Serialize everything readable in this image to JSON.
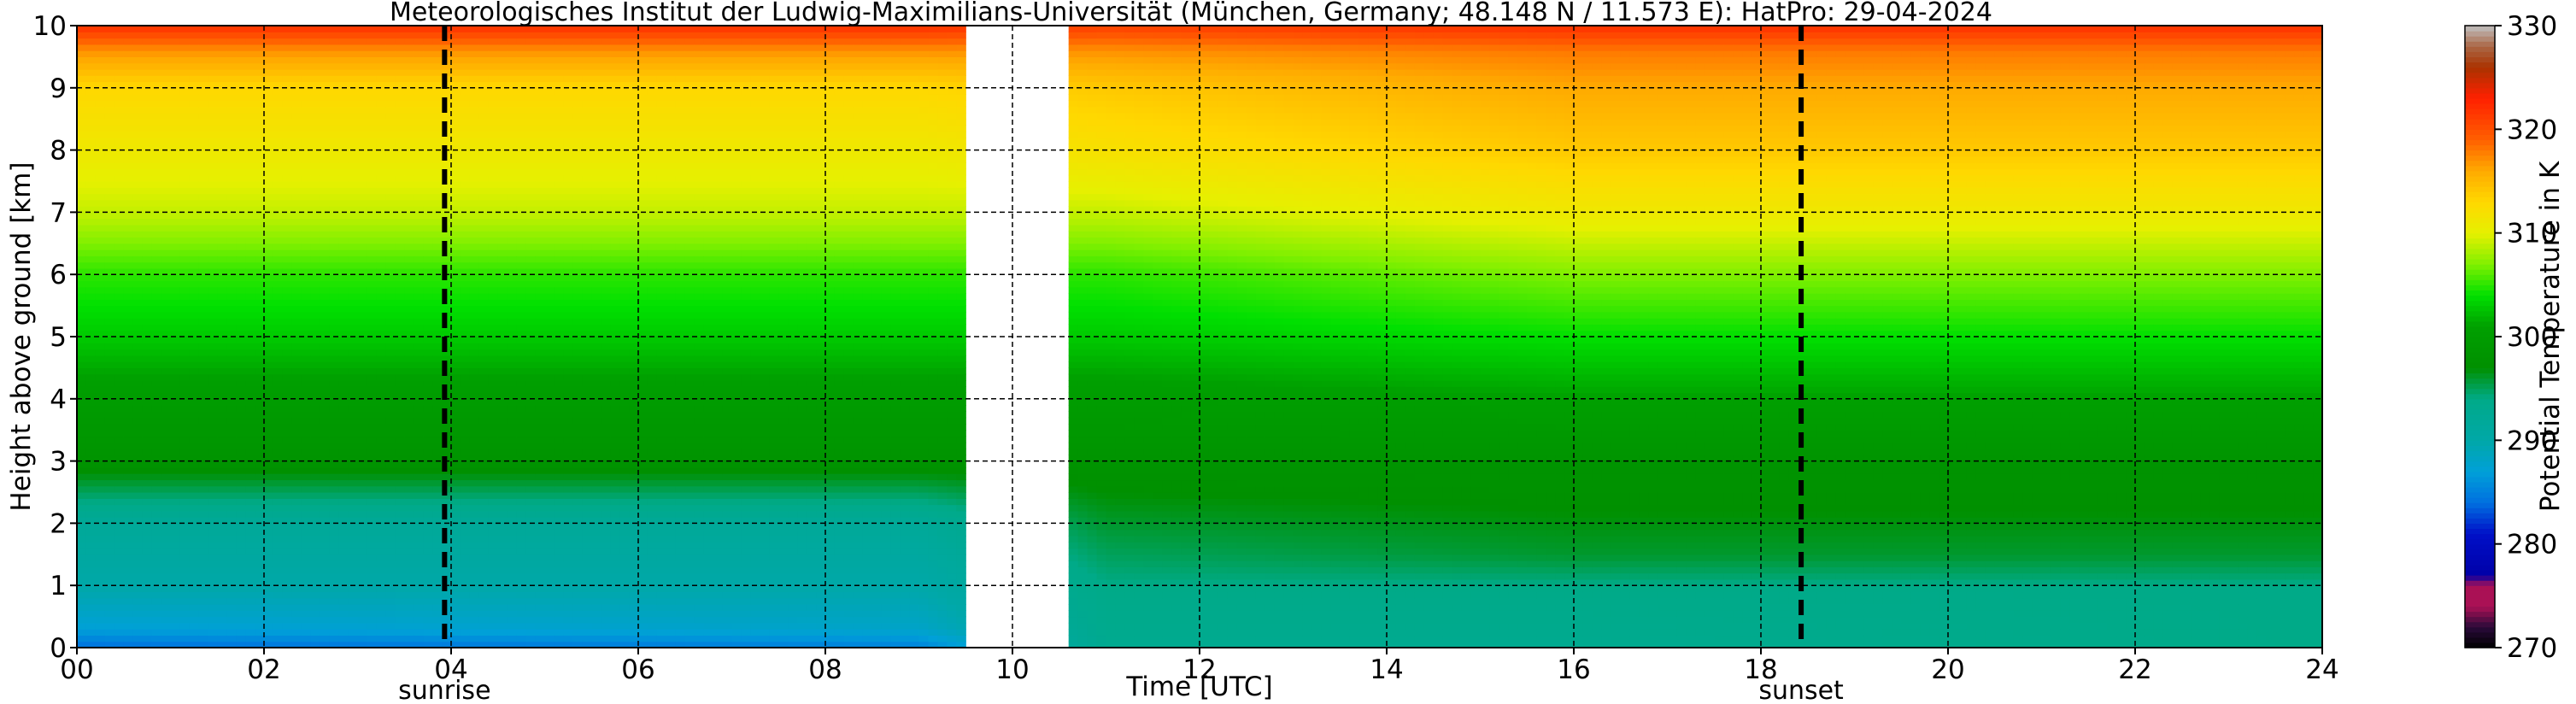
{
  "chart_data": {
    "type": "heatmap",
    "title": "Meteorologisches Institut der Ludwig-Maximilians-Universität (München, Germany; 48.148 N / 11.573 E):    HatPro: 29-04-2024",
    "xlabel": "Time [UTC]",
    "ylabel": "Height above ground [km]",
    "colorbar_label": "Potential Temperature in K",
    "xlim": [
      0,
      24
    ],
    "ylim": [
      0,
      10
    ],
    "x_ticks": [
      "00",
      "02",
      "04",
      "06",
      "08",
      "10",
      "12",
      "14",
      "16",
      "18",
      "20",
      "22",
      "24"
    ],
    "y_ticks": [
      "0",
      "1",
      "2",
      "3",
      "4",
      "5",
      "6",
      "7",
      "8",
      "9",
      "10"
    ],
    "colorbar_range": [
      270,
      330
    ],
    "colorbar_ticks": [
      "270",
      "280",
      "290",
      "300",
      "310",
      "320",
      "330"
    ],
    "colorbar_colors": [
      {
        "value": 270,
        "color": "#000000"
      },
      {
        "value": 272,
        "color": "#2a0a3a"
      },
      {
        "value": 274,
        "color": "#aa1155"
      },
      {
        "value": 276,
        "color": "#aa1155"
      },
      {
        "value": 277,
        "color": "#0000a8"
      },
      {
        "value": 281,
        "color": "#0010c8"
      },
      {
        "value": 284,
        "color": "#0070e0"
      },
      {
        "value": 287,
        "color": "#00a0d8"
      },
      {
        "value": 290,
        "color": "#00a8a8"
      },
      {
        "value": 294,
        "color": "#00aa88"
      },
      {
        "value": 297,
        "color": "#009000"
      },
      {
        "value": 301,
        "color": "#00a000"
      },
      {
        "value": 304,
        "color": "#00e000"
      },
      {
        "value": 307,
        "color": "#80f000"
      },
      {
        "value": 310,
        "color": "#e6f000"
      },
      {
        "value": 313,
        "color": "#ffd800"
      },
      {
        "value": 316,
        "color": "#ffaa00"
      },
      {
        "value": 319,
        "color": "#ff6000"
      },
      {
        "value": 323,
        "color": "#ff2000"
      },
      {
        "value": 326,
        "color": "#aa3300"
      },
      {
        "value": 328,
        "color": "#aa6644"
      },
      {
        "value": 330,
        "color": "#c0c0c0"
      }
    ],
    "data_gaps": [
      {
        "from": 9.53,
        "to": 10.57
      }
    ],
    "grid": true,
    "vlines": [
      {
        "x": 3.93,
        "label": "sunrise",
        "style": "dashed"
      },
      {
        "x": 18.43,
        "label": "sunset",
        "style": "dashed"
      }
    ],
    "profiles": [
      {
        "time": 0,
        "heights": [
          0,
          0.3,
          1,
          2,
          3,
          4,
          5,
          6,
          7,
          8,
          9,
          9.6,
          10
        ],
        "theta": [
          284,
          287,
          290,
          292,
          298,
          300,
          303,
          305,
          309,
          311,
          313,
          317,
          322
        ]
      },
      {
        "time": 9,
        "heights": [
          0,
          0.3,
          1,
          2,
          3,
          4,
          5,
          6,
          7,
          8,
          9,
          9.6,
          10
        ],
        "theta": [
          285,
          288,
          290,
          292,
          298,
          300,
          303,
          305,
          309,
          311,
          313,
          317,
          322
        ]
      },
      {
        "time": 11,
        "heights": [
          0,
          1,
          2,
          3,
          4,
          5,
          6,
          7,
          8,
          9,
          9.6,
          10
        ],
        "theta": [
          293,
          294,
          296,
          298,
          300,
          303,
          305,
          309,
          312,
          314,
          317,
          321
        ]
      },
      {
        "time": 16,
        "heights": [
          0,
          1,
          1.5,
          2.2,
          3,
          4,
          5,
          6,
          7,
          8,
          9,
          9.6,
          10
        ],
        "theta": [
          293,
          294,
          296,
          297,
          298,
          301,
          304,
          307,
          311,
          314,
          316,
          318,
          322
        ]
      },
      {
        "time": 24,
        "heights": [
          0,
          1,
          1.5,
          2.2,
          3,
          4,
          5,
          6,
          7,
          8,
          9,
          9.6,
          10
        ],
        "theta": [
          294,
          294,
          296,
          297,
          298,
          301,
          304,
          307,
          311,
          314,
          316,
          318,
          322
        ]
      }
    ]
  }
}
